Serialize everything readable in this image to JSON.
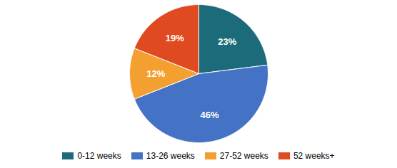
{
  "chart_data": {
    "type": "pie",
    "categories": [
      "0-12 weeks",
      "13-26 weeks",
      "27-52 weeks",
      "52 weeks+"
    ],
    "values": [
      23,
      46,
      12,
      19
    ],
    "value_labels": [
      "23%",
      "46%",
      "12%",
      "19%"
    ],
    "colors": [
      "#1B6B7B",
      "#4472C4",
      "#F4A030",
      "#E04A20"
    ],
    "data_labels": true,
    "legend": "bottom"
  }
}
